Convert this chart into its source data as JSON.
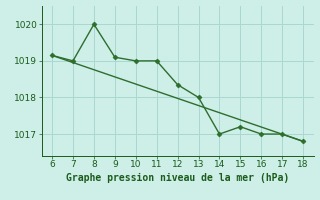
{
  "x": [
    6,
    7,
    8,
    9,
    10,
    11,
    12,
    13,
    14,
    15,
    16,
    17,
    18
  ],
  "y": [
    1019.15,
    1019.0,
    1020.0,
    1019.1,
    1019.0,
    1019.0,
    1018.35,
    1018.0,
    1017.0,
    1017.2,
    1017.0,
    1017.0,
    1016.8
  ],
  "line_color": "#2d6e2d",
  "marker": "D",
  "marker_size": 2.5,
  "background_color": "#ceeee8",
  "grid_color": "#a8d8d0",
  "xlabel": "Graphe pression niveau de la mer (hPa)",
  "xlabel_color": "#1a5c1a",
  "xlabel_fontsize": 7,
  "xlim": [
    5.5,
    18.5
  ],
  "ylim": [
    1016.4,
    1020.5
  ],
  "yticks": [
    1017,
    1018,
    1019,
    1020
  ],
  "xticks": [
    6,
    7,
    8,
    9,
    10,
    11,
    12,
    13,
    14,
    15,
    16,
    17,
    18
  ],
  "tick_fontsize": 6.5,
  "tick_color": "#1a5c1a",
  "line_width": 1.0,
  "trend_x": [
    6,
    18
  ],
  "trend_y": [
    1019.15,
    1016.8
  ]
}
